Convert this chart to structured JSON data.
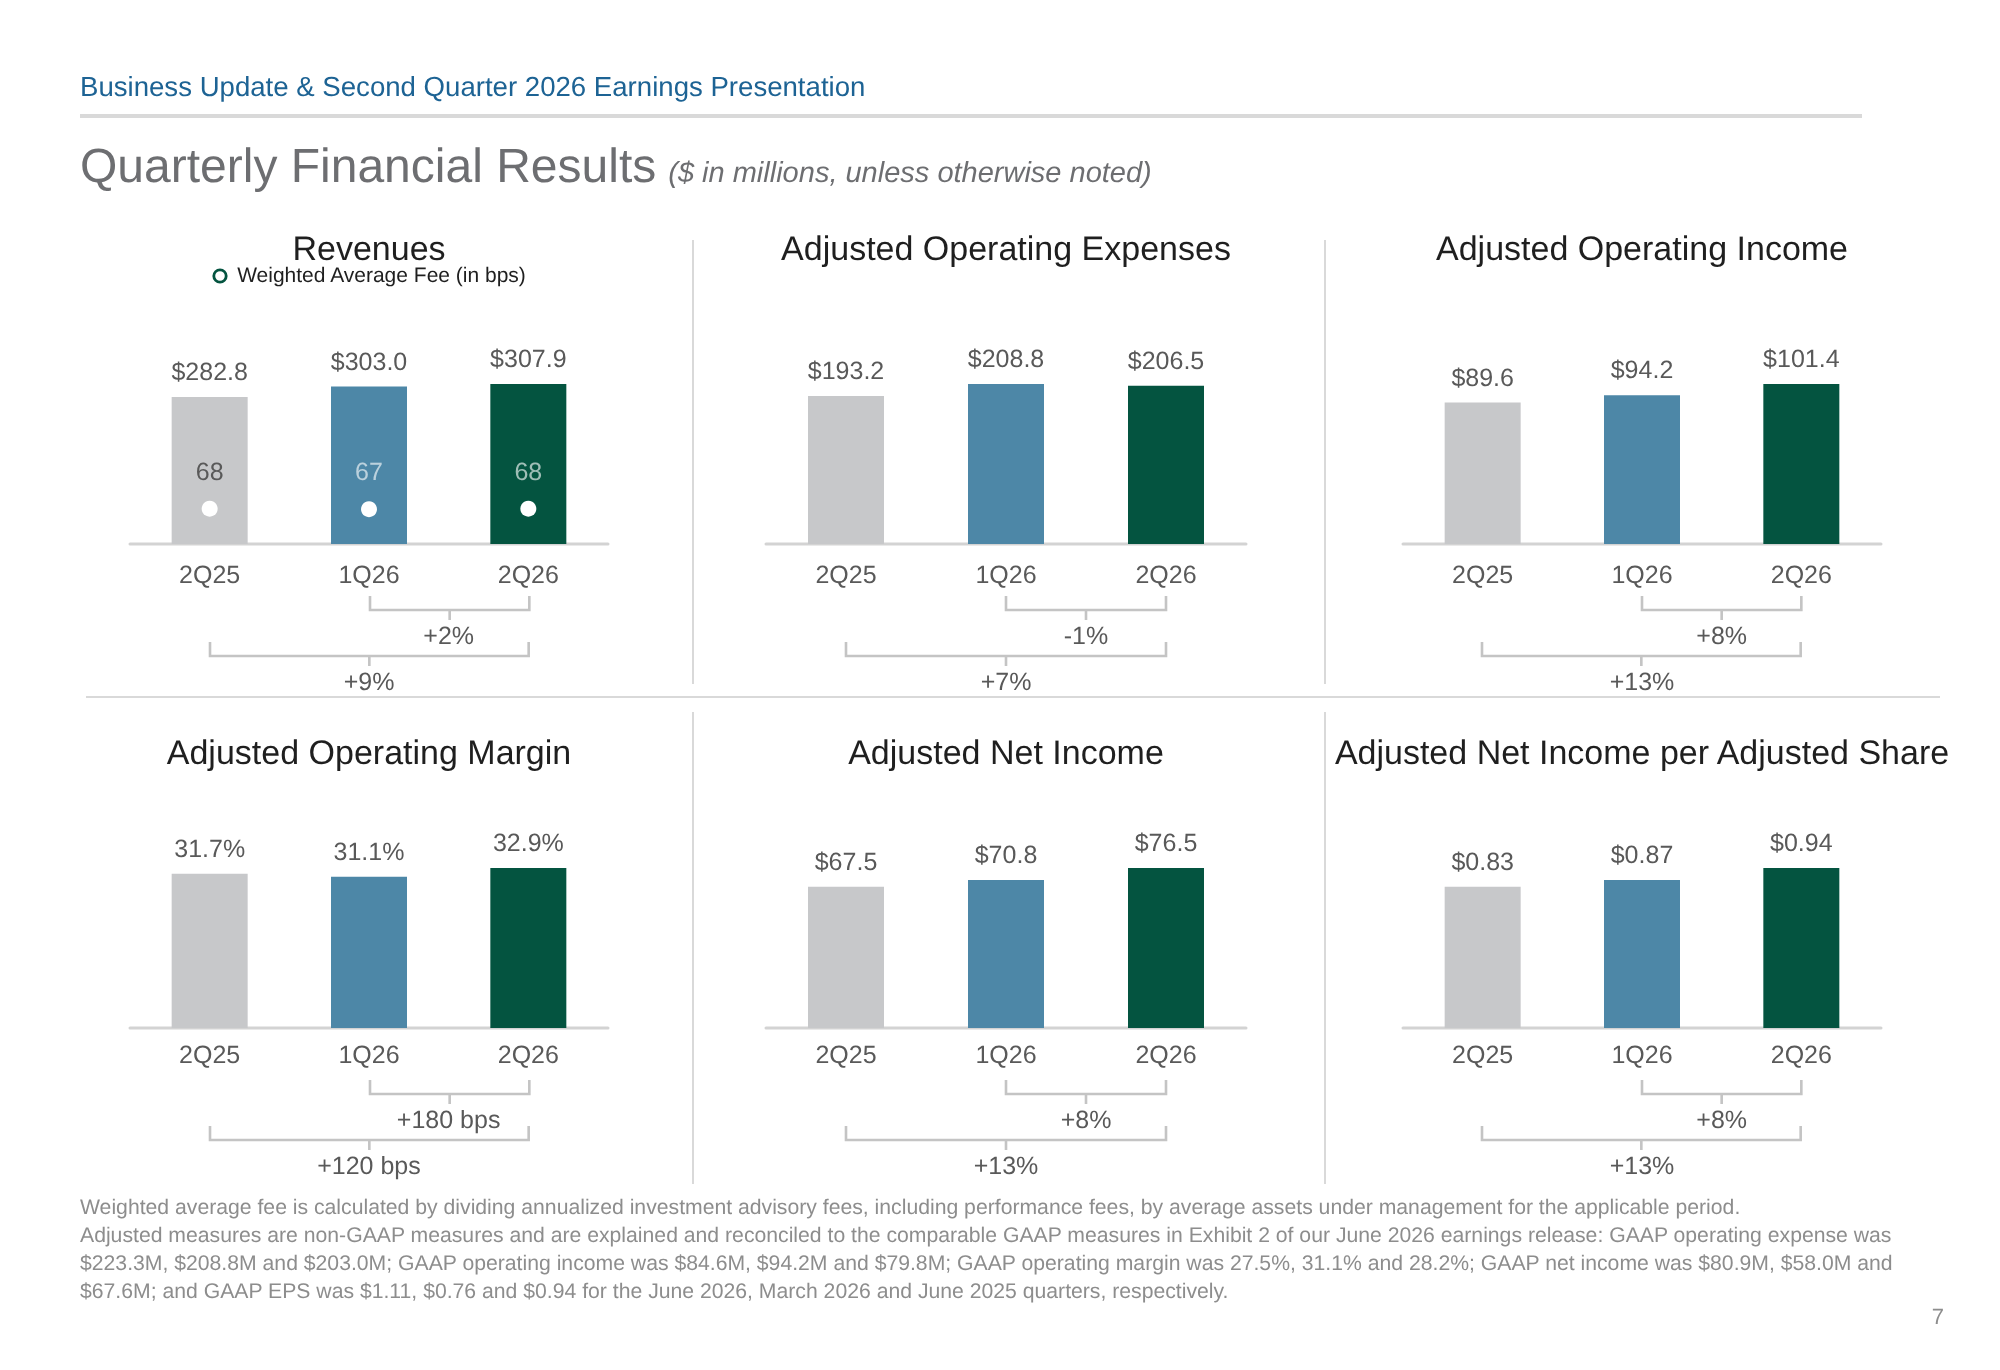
{
  "chart_data": [
    {
      "type": "other",
      "title": "Quarterly Financial Results",
      "subtitle": "($ in millions, unless otherwise noted)",
      "annotations": [
        "Business Update & Second Quarter 2026 Earnings Presentation"
      ]
    },
    {
      "type": "bar",
      "title": "Revenues",
      "categories": [
        "2Q25",
        "1Q26",
        "2Q26"
      ],
      "series": [
        {
          "type": "bar",
          "values": [
            282.8,
            303.0,
            307.9
          ],
          "colors": [
            "#c7c8ca",
            "#4d87a7",
            "#045440"
          ],
          "value_labels": [
            "$282.8",
            "$303.0",
            "$307.9"
          ]
        },
        {
          "type": "scatter",
          "name": "Weighted Average Fee (in bps)",
          "color": "#ffffff",
          "values": [
            68,
            67,
            68
          ],
          "value_labels": [
            "68",
            "67",
            "68"
          ]
        }
      ],
      "marker": "circle",
      "legend": "top",
      "annotations": [
        "+2%",
        "+9%"
      ]
    },
    {
      "type": "bar",
      "title": "Adjusted Operating Expenses",
      "categories": [
        "2Q25",
        "1Q26",
        "2Q26"
      ],
      "values": [
        193.2,
        208.8,
        206.5
      ],
      "colors": [
        "#c7c8ca",
        "#4d87a7",
        "#045440"
      ],
      "value_labels": [
        "$193.2",
        "$208.8",
        "$206.5"
      ],
      "annotations": [
        "-1%",
        "+7%"
      ]
    },
    {
      "type": "bar",
      "title": "Adjusted Operating Income",
      "categories": [
        "2Q25",
        "1Q26",
        "2Q26"
      ],
      "values": [
        89.6,
        94.2,
        101.4
      ],
      "colors": [
        "#c7c8ca",
        "#4d87a7",
        "#045440"
      ],
      "value_labels": [
        "$89.6",
        "$94.2",
        "$101.4"
      ],
      "annotations": [
        "+8%",
        "+13%"
      ]
    },
    {
      "type": "bar",
      "title": "Adjusted Operating Margin",
      "categories": [
        "2Q25",
        "1Q26",
        "2Q26"
      ],
      "values": [
        31.7,
        31.1,
        32.9
      ],
      "colors": [
        "#c7c8ca",
        "#4d87a7",
        "#045440"
      ],
      "value_labels": [
        "31.7%",
        "31.1%",
        "32.9%"
      ],
      "annotations": [
        "+180 bps",
        "+120 bps"
      ]
    },
    {
      "type": "bar",
      "title": "Adjusted Net Income",
      "categories": [
        "2Q25",
        "1Q26",
        "2Q26"
      ],
      "values": [
        67.5,
        70.8,
        76.5
      ],
      "colors": [
        "#c7c8ca",
        "#4d87a7",
        "#045440"
      ],
      "value_labels": [
        "$67.5",
        "$70.8",
        "$76.5"
      ],
      "annotations": [
        "+8%",
        "+13%"
      ]
    },
    {
      "type": "bar",
      "title": "Adjusted Net Income per Adjusted Share",
      "categories": [
        "2Q25",
        "1Q26",
        "2Q26"
      ],
      "values": [
        0.83,
        0.87,
        0.94
      ],
      "colors": [
        "#c7c8ca",
        "#4d87a7",
        "#045440"
      ],
      "value_labels": [
        "$0.83",
        "$0.87",
        "$0.94"
      ],
      "annotations": [
        "+8%",
        "+13%"
      ]
    },
    {
      "type": "other",
      "annotations": [
        "Weighted average fee is calculated by dividing annualized investment advisory fees, including performance fees, by average assets under management for the applicable period.",
        "Adjusted measures are non-GAAP measures and are explained and reconciled to the comparable GAAP measures in Exhibit 2 of our June 2026 earnings release: GAAP operating expense was $223.3M, $208.8M and $203.0M; GAAP operating income was $84.6M, $94.2M and $79.8M; GAAP operating margin was 27.5%, 31.1% and 28.2%; GAAP net income was $80.9M, $58.0M and $67.6M; and GAAP EPS was $1.11, $0.76 and $0.94 for the June 2026, March 2026 and June 2025 quarters, respectively.",
        "7"
      ]
    }
  ]
}
